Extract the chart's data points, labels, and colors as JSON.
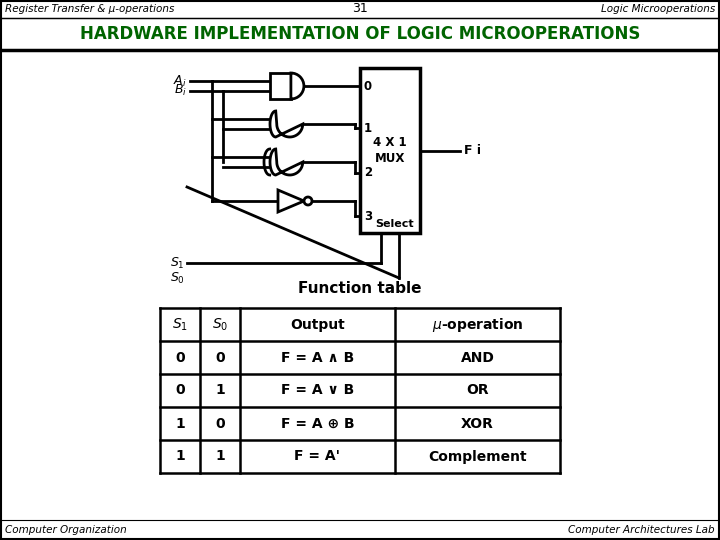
{
  "title_header": "HARDWARE IMPLEMENTATION OF LOGIC MICROOPERATIONS",
  "slide_number": "31",
  "left_header": "Register Transfer & μ-operations",
  "right_header": "Logic Microoperations",
  "footer_left": "Computer Organization",
  "footer_right": "Computer Architectures Lab",
  "header_color": "#006400",
  "table_title": "Function table",
  "table_headers": [
    "S₁  S₀",
    "",
    "Output",
    "μ-operation"
  ],
  "table_rows": [
    [
      "0    0",
      "",
      "F = A ∧ B",
      "AND"
    ],
    [
      "0    1",
      "",
      "F = A ∨ B",
      "OR"
    ],
    [
      "1    0",
      "",
      "F = A ⊕ B",
      "XOR"
    ],
    [
      "1    1",
      "",
      "F = A'",
      "Complement"
    ]
  ]
}
